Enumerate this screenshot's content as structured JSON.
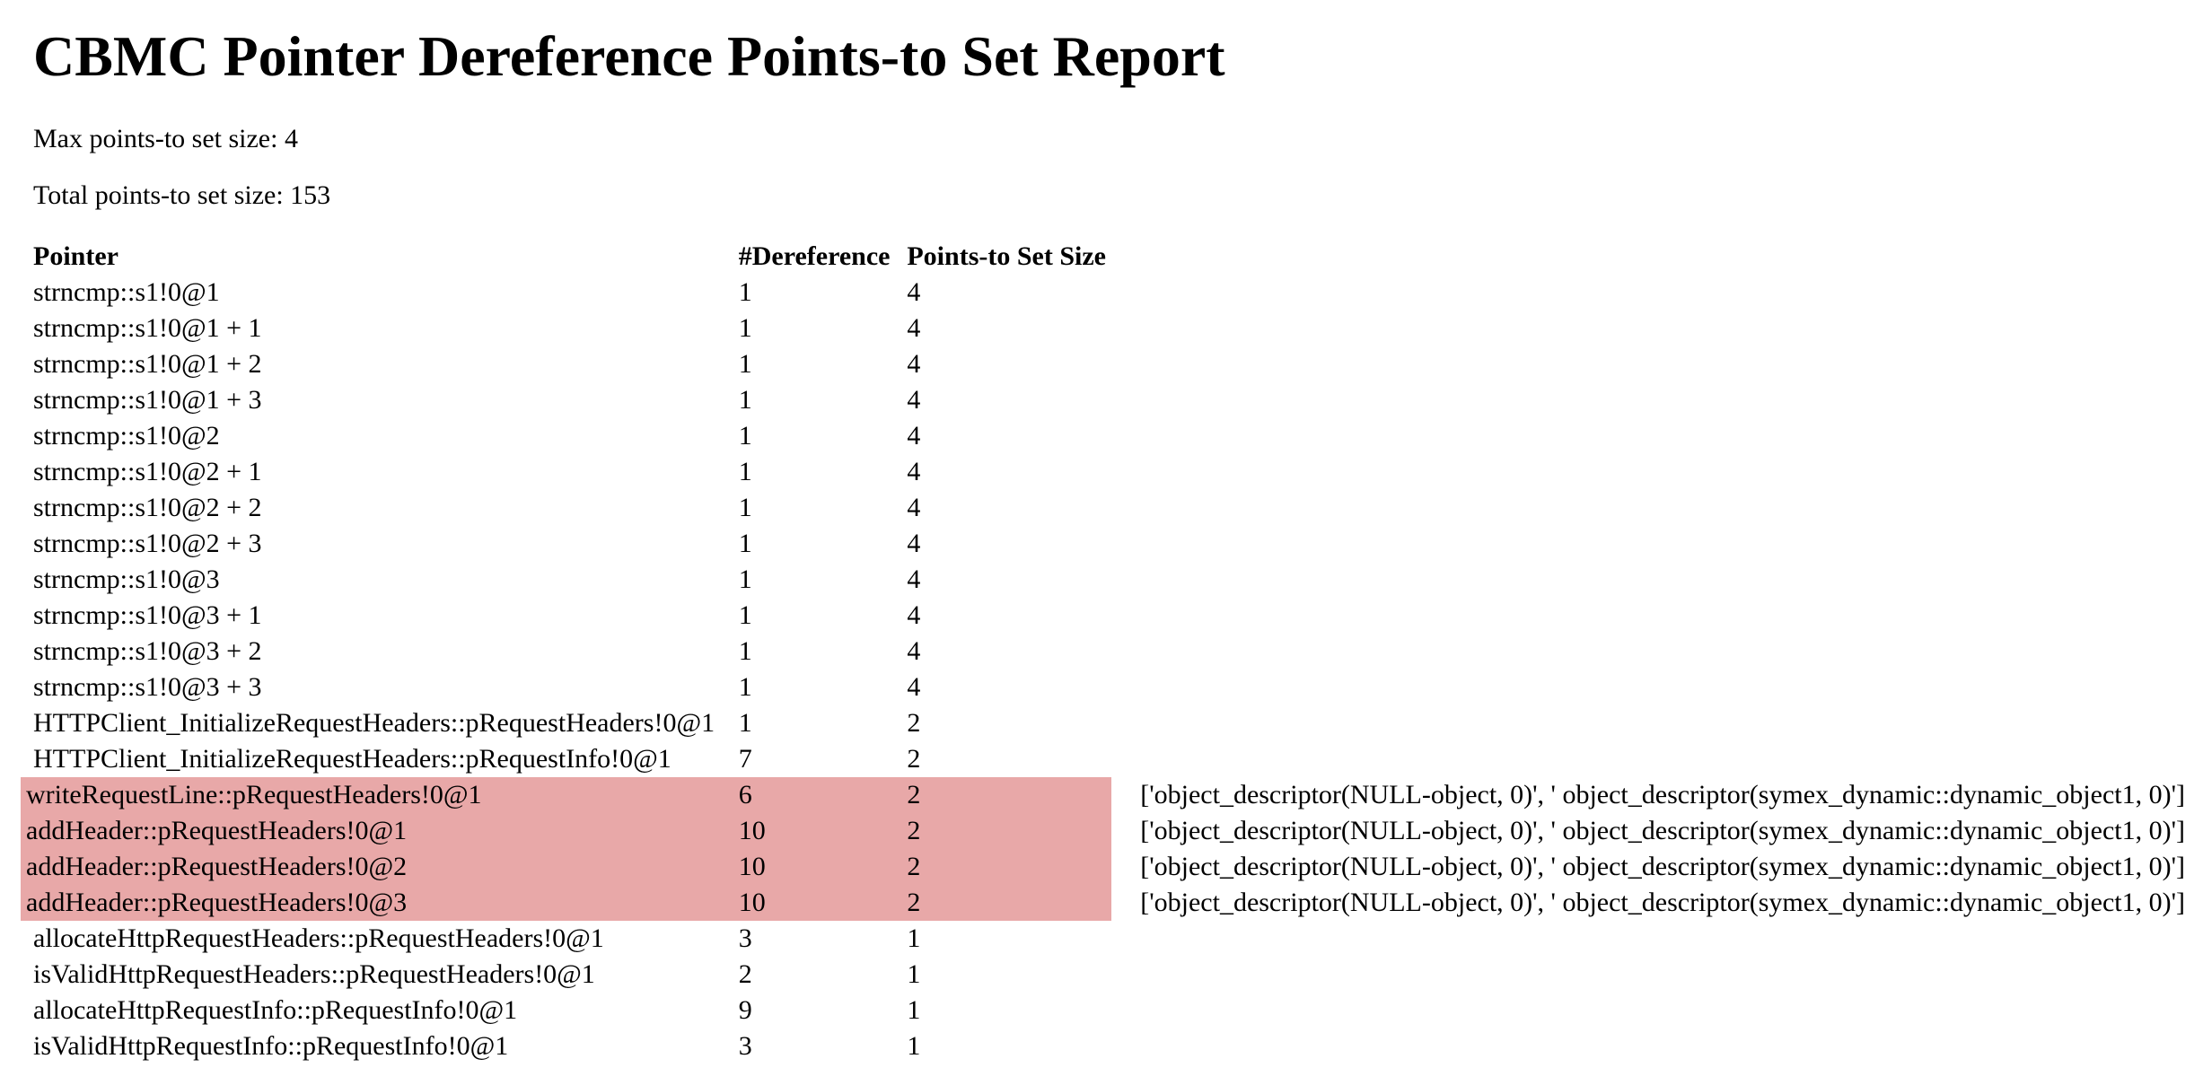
{
  "title": "CBMC Pointer Dereference Points-to Set Report",
  "max_label": "Max points-to set size: 4",
  "total_label": "Total points-to set size: 153",
  "headers": {
    "pointer": "Pointer",
    "dereference": "#Dereference",
    "set_size": "Points-to Set Size"
  },
  "highlight_color": "#e8a8a8",
  "rows": [
    {
      "pointer": "strncmp::s1!0@1",
      "deref": "1",
      "size": "4",
      "targets": "",
      "highlight": false
    },
    {
      "pointer": "strncmp::s1!0@1 + 1",
      "deref": "1",
      "size": "4",
      "targets": "",
      "highlight": false
    },
    {
      "pointer": "strncmp::s1!0@1 + 2",
      "deref": "1",
      "size": "4",
      "targets": "",
      "highlight": false
    },
    {
      "pointer": "strncmp::s1!0@1 + 3",
      "deref": "1",
      "size": "4",
      "targets": "",
      "highlight": false
    },
    {
      "pointer": "strncmp::s1!0@2",
      "deref": "1",
      "size": "4",
      "targets": "",
      "highlight": false
    },
    {
      "pointer": "strncmp::s1!0@2 + 1",
      "deref": "1",
      "size": "4",
      "targets": "",
      "highlight": false
    },
    {
      "pointer": "strncmp::s1!0@2 + 2",
      "deref": "1",
      "size": "4",
      "targets": "",
      "highlight": false
    },
    {
      "pointer": "strncmp::s1!0@2 + 3",
      "deref": "1",
      "size": "4",
      "targets": "",
      "highlight": false
    },
    {
      "pointer": "strncmp::s1!0@3",
      "deref": "1",
      "size": "4",
      "targets": "",
      "highlight": false
    },
    {
      "pointer": "strncmp::s1!0@3 + 1",
      "deref": "1",
      "size": "4",
      "targets": "",
      "highlight": false
    },
    {
      "pointer": "strncmp::s1!0@3 + 2",
      "deref": "1",
      "size": "4",
      "targets": "",
      "highlight": false
    },
    {
      "pointer": "strncmp::s1!0@3 + 3",
      "deref": "1",
      "size": "4",
      "targets": "",
      "highlight": false
    },
    {
      "pointer": "HTTPClient_InitializeRequestHeaders::pRequestHeaders!0@1",
      "deref": "1",
      "size": "2",
      "targets": "",
      "highlight": false
    },
    {
      "pointer": "HTTPClient_InitializeRequestHeaders::pRequestInfo!0@1",
      "deref": "7",
      "size": "2",
      "targets": "",
      "highlight": false
    },
    {
      "pointer": "writeRequestLine::pRequestHeaders!0@1",
      "deref": "6",
      "size": "2",
      "targets": "['object_descriptor(NULL-object, 0)', ' object_descriptor(symex_dynamic::dynamic_object1, 0)']",
      "highlight": true
    },
    {
      "pointer": "addHeader::pRequestHeaders!0@1",
      "deref": "10",
      "size": "2",
      "targets": "['object_descriptor(NULL-object, 0)', ' object_descriptor(symex_dynamic::dynamic_object1, 0)']",
      "highlight": true
    },
    {
      "pointer": "addHeader::pRequestHeaders!0@2",
      "deref": "10",
      "size": "2",
      "targets": "['object_descriptor(NULL-object, 0)', ' object_descriptor(symex_dynamic::dynamic_object1, 0)']",
      "highlight": true
    },
    {
      "pointer": "addHeader::pRequestHeaders!0@3",
      "deref": "10",
      "size": "2",
      "targets": "['object_descriptor(NULL-object, 0)', ' object_descriptor(symex_dynamic::dynamic_object1, 0)']",
      "highlight": true
    },
    {
      "pointer": "allocateHttpRequestHeaders::pRequestHeaders!0@1",
      "deref": "3",
      "size": "1",
      "targets": "",
      "highlight": false
    },
    {
      "pointer": "isValidHttpRequestHeaders::pRequestHeaders!0@1",
      "deref": "2",
      "size": "1",
      "targets": "",
      "highlight": false
    },
    {
      "pointer": "allocateHttpRequestInfo::pRequestInfo!0@1",
      "deref": "9",
      "size": "1",
      "targets": "",
      "highlight": false
    },
    {
      "pointer": "isValidHttpRequestInfo::pRequestInfo!0@1",
      "deref": "3",
      "size": "1",
      "targets": "",
      "highlight": false
    }
  ]
}
